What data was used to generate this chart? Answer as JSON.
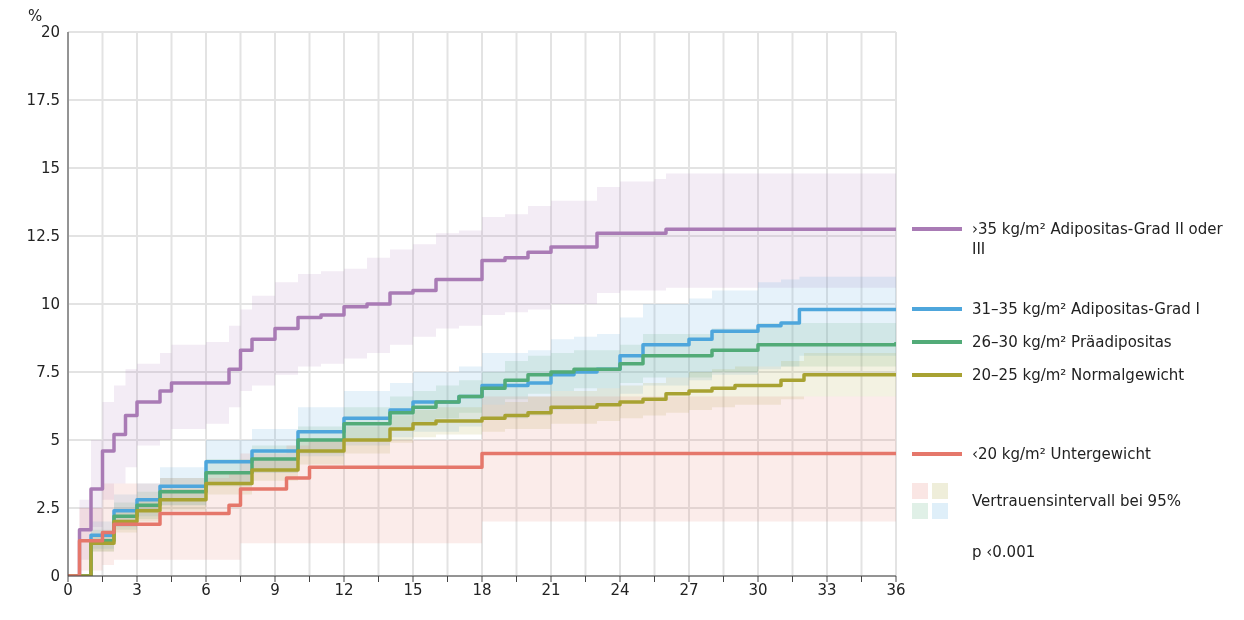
{
  "chart_data": {
    "type": "step",
    "ylabel": "%",
    "xlim": [
      0,
      36
    ],
    "ylim": [
      0,
      20
    ],
    "xticks": [
      0,
      {
        "value": 1.5,
        "label": null
      },
      3,
      {
        "value": 4.5,
        "label": null
      },
      6,
      {
        "value": 7.5,
        "label": null
      },
      9,
      {
        "value": 10.5,
        "label": null
      },
      12,
      {
        "value": 13.5,
        "label": null
      },
      15,
      {
        "value": 16.5,
        "label": null
      },
      18,
      {
        "value": 19.5,
        "label": null
      },
      21,
      {
        "value": 22.5,
        "label": null
      },
      24,
      {
        "value": 25.5,
        "label": null
      },
      27,
      {
        "value": 28.5,
        "label": null
      },
      30,
      {
        "value": 31.5,
        "label": null
      },
      33,
      {
        "value": 34.5,
        "label": null
      },
      36
    ],
    "yticks": [
      0,
      2.5,
      5,
      7.5,
      10,
      12.5,
      15,
      17.5,
      20
    ],
    "grid": true,
    "legend": "right",
    "line_style": "solid",
    "marker": "none",
    "series": [
      {
        "name": "›35 kg/m² Adipositas-Grad II oder III",
        "color": "#a97bb5",
        "x": [
          0,
          0.5,
          1,
          1.5,
          2,
          2.5,
          3,
          4,
          4.5,
          6,
          7,
          7.5,
          8,
          9,
          10,
          11,
          12,
          13,
          14,
          15,
          16,
          17,
          18,
          19,
          20,
          21,
          22,
          23,
          24,
          25.5,
          26,
          36
        ],
        "values": [
          0,
          1.7,
          3.2,
          4.6,
          5.2,
          5.9,
          6.4,
          6.8,
          7.1,
          7.1,
          7.6,
          8.3,
          8.7,
          9.1,
          9.5,
          9.6,
          9.9,
          10.0,
          10.4,
          10.5,
          10.9,
          10.9,
          11.6,
          11.7,
          11.9,
          12.1,
          12.1,
          12.6,
          12.6,
          12.6,
          12.75,
          12.75
        ],
        "lower": [
          0,
          0.6,
          1.8,
          2.8,
          3.4,
          4.0,
          4.8,
          5.0,
          5.4,
          5.6,
          6.2,
          6.8,
          7.0,
          7.4,
          7.7,
          7.8,
          8.0,
          8.2,
          8.5,
          8.8,
          9.1,
          9.2,
          9.6,
          9.7,
          9.8,
          10.0,
          10.0,
          10.4,
          10.5,
          10.5,
          10.6,
          10.6
        ],
        "upper": [
          0,
          2.8,
          5.0,
          6.4,
          7.0,
          7.6,
          7.8,
          8.2,
          8.5,
          8.6,
          9.2,
          9.8,
          10.3,
          10.8,
          11.1,
          11.2,
          11.3,
          11.7,
          12.0,
          12.2,
          12.6,
          12.7,
          13.2,
          13.3,
          13.6,
          13.8,
          13.8,
          14.3,
          14.5,
          14.6,
          14.8,
          14.8
        ]
      },
      {
        "name": "31–35 kg/m² Adipositas-Grad I",
        "color": "#4ea6dc",
        "x": [
          0,
          1,
          2,
          3,
          4,
          6,
          8,
          10,
          12,
          14,
          15,
          17,
          18,
          20,
          21,
          22,
          23,
          24,
          25,
          27,
          28,
          30,
          31,
          31.8,
          36
        ],
        "values": [
          0,
          1.5,
          2.4,
          2.8,
          3.3,
          4.2,
          4.6,
          5.3,
          5.8,
          6.1,
          6.4,
          6.6,
          7.0,
          7.1,
          7.4,
          7.5,
          7.6,
          8.1,
          8.5,
          8.7,
          9.0,
          9.2,
          9.3,
          9.8,
          9.8
        ],
        "lower": [
          0,
          1.0,
          1.8,
          2.2,
          2.6,
          3.4,
          3.8,
          4.4,
          4.8,
          5.1,
          5.3,
          5.5,
          5.8,
          5.9,
          6.1,
          6.2,
          6.3,
          6.7,
          7.0,
          7.2,
          7.4,
          7.6,
          7.7,
          8.1,
          8.1
        ],
        "upper": [
          0,
          2.0,
          3.0,
          3.4,
          4.0,
          5.0,
          5.4,
          6.2,
          6.8,
          7.1,
          7.5,
          7.7,
          8.2,
          8.3,
          8.7,
          8.8,
          8.9,
          9.5,
          10.0,
          10.2,
          10.5,
          10.8,
          10.9,
          11.0,
          11.0
        ]
      },
      {
        "name": "26–30 kg/m² Präadipositas",
        "color": "#52ab78",
        "x": [
          0,
          1,
          2,
          3,
          4,
          6,
          8,
          10,
          12,
          14,
          15,
          16,
          17,
          18,
          19,
          20,
          21,
          22,
          24,
          25,
          27,
          28,
          30,
          36
        ],
        "values": [
          0,
          1.3,
          2.2,
          2.6,
          3.1,
          3.8,
          4.3,
          5.0,
          5.6,
          6.0,
          6.2,
          6.4,
          6.6,
          6.9,
          7.2,
          7.4,
          7.5,
          7.6,
          7.8,
          8.1,
          8.1,
          8.3,
          8.5,
          8.6
        ],
        "lower": [
          0,
          0.9,
          1.7,
          2.1,
          2.6,
          3.3,
          3.8,
          4.5,
          5.0,
          5.4,
          5.6,
          5.8,
          6.0,
          6.3,
          6.5,
          6.7,
          6.8,
          6.9,
          7.1,
          7.3,
          7.3,
          7.5,
          7.7,
          7.8
        ],
        "upper": [
          0,
          1.7,
          2.7,
          3.1,
          3.6,
          4.3,
          4.8,
          5.5,
          6.2,
          6.6,
          6.8,
          7.0,
          7.2,
          7.5,
          7.9,
          8.1,
          8.2,
          8.3,
          8.5,
          8.9,
          8.9,
          9.1,
          9.3,
          9.4
        ]
      },
      {
        "name": "20–25 kg/m² Normalgewicht",
        "color": "#a8a232",
        "x": [
          0,
          1,
          2,
          3,
          4,
          6,
          8,
          10,
          12,
          14,
          15,
          16,
          18,
          19,
          20,
          21,
          23,
          24,
          25,
          26,
          27,
          28,
          29,
          30,
          31,
          32,
          36
        ],
        "values": [
          0,
          1.2,
          2.0,
          2.4,
          2.8,
          3.4,
          3.9,
          4.6,
          5.0,
          5.4,
          5.6,
          5.7,
          5.8,
          5.9,
          6.0,
          6.2,
          6.3,
          6.4,
          6.5,
          6.7,
          6.8,
          6.9,
          7.0,
          7.0,
          7.2,
          7.4,
          7.4
        ],
        "lower": [
          0,
          0.9,
          1.6,
          2.0,
          2.4,
          3.0,
          3.5,
          4.1,
          4.5,
          4.9,
          5.1,
          5.2,
          5.3,
          5.4,
          5.4,
          5.6,
          5.7,
          5.8,
          5.9,
          6.0,
          6.1,
          6.2,
          6.3,
          6.3,
          6.5,
          6.6,
          6.6
        ],
        "upper": [
          0,
          1.5,
          2.4,
          2.8,
          3.2,
          3.8,
          4.3,
          5.0,
          5.5,
          5.9,
          6.1,
          6.2,
          6.3,
          6.4,
          6.6,
          6.8,
          6.9,
          7.0,
          7.1,
          7.3,
          7.5,
          7.6,
          7.7,
          7.7,
          7.9,
          8.2,
          8.2
        ]
      },
      {
        "name": "‹20 kg/m² Untergewicht",
        "color": "#e5776b",
        "x": [
          0,
          0.5,
          1.5,
          2,
          4,
          7,
          7.5,
          9.5,
          10.5,
          18,
          36
        ],
        "values": [
          0,
          1.3,
          1.6,
          1.9,
          2.3,
          2.6,
          3.2,
          3.6,
          4.0,
          4.5,
          4.5
        ],
        "lower": [
          0,
          0.2,
          0.4,
          0.6,
          0.6,
          0.6,
          1.2,
          1.2,
          1.2,
          2.0,
          2.0
        ],
        "upper": [
          0,
          2.5,
          3.4,
          3.4,
          3.6,
          3.8,
          4.5,
          4.8,
          5.0,
          6.6,
          6.6
        ]
      }
    ],
    "annotations": [
      "Vertrauensintervall bei 95%",
      "p ‹0.001"
    ]
  }
}
